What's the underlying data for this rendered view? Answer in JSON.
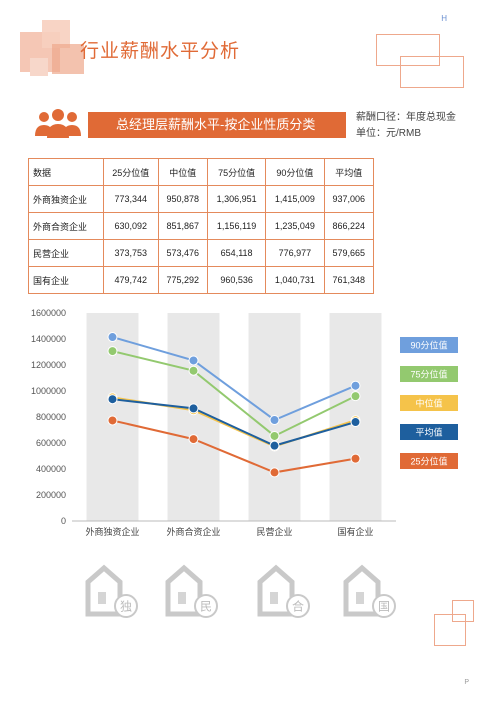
{
  "header": {
    "title": "行业薪酬水平分析",
    "corner_mark": "H"
  },
  "section": {
    "banner_text": "总经理层薪酬水平-按企业性质分类",
    "caliber_text": "薪酬口径：年度总现金",
    "unit_text": "单位：元/RMB"
  },
  "table": {
    "headers": [
      "数据",
      "25分位值",
      "中位值",
      "75分位值",
      "90分位值",
      "平均值"
    ],
    "rows": [
      [
        "外商独资企业",
        "773,344",
        "950,878",
        "1,306,951",
        "1,415,009",
        "937,006"
      ],
      [
        "外商合资企业",
        "630,092",
        "851,867",
        "1,156,119",
        "1,235,049",
        "866,224"
      ],
      [
        "民营企业",
        "373,753",
        "573,476",
        "654,118",
        "776,977",
        "579,665"
      ],
      [
        "国有企业",
        "479,742",
        "775,292",
        "960,536",
        "1,040,731",
        "761,348"
      ]
    ]
  },
  "chart_data": {
    "type": "line",
    "title": "",
    "xlabel": "",
    "ylabel": "",
    "categories": [
      "外商独资企业",
      "外商合资企业",
      "民营企业",
      "国有企业"
    ],
    "yticks": [
      "0",
      "200000",
      "400000",
      "600000",
      "800000",
      "1000000",
      "1200000",
      "1400000",
      "1600000"
    ],
    "ylim": [
      0,
      1600000
    ],
    "grid": false,
    "legend_position": "right",
    "series": [
      {
        "name": "90分位值",
        "color": "#6f9fdd",
        "values": [
          1415009,
          1235049,
          776977,
          1040731
        ]
      },
      {
        "name": "75分位值",
        "color": "#93c96f",
        "values": [
          1306951,
          1156119,
          654118,
          960536
        ]
      },
      {
        "name": "中位值",
        "color": "#f5c34a",
        "values": [
          950878,
          851867,
          573476,
          775292
        ]
      },
      {
        "name": "平均值",
        "color": "#1e5f9e",
        "values": [
          937006,
          866224,
          579665,
          761348
        ]
      },
      {
        "name": "25分位值",
        "color": "#e06a36",
        "values": [
          773344,
          630092,
          373753,
          479742
        ]
      }
    ]
  },
  "icons": [
    {
      "name": "foreign-owned-icon",
      "char": "独"
    },
    {
      "name": "joint-venture-icon",
      "char": "民"
    },
    {
      "name": "private-enterprise-icon",
      "char": "合"
    },
    {
      "name": "state-owned-icon",
      "char": "国"
    }
  ],
  "footer": {
    "page_mark": "P"
  }
}
